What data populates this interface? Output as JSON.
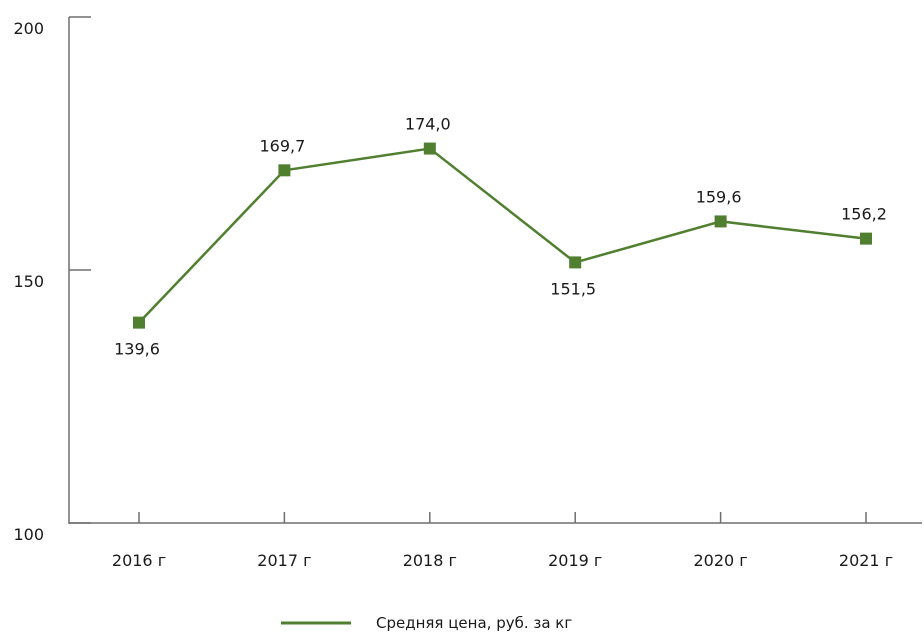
{
  "chart_data": {
    "type": "line",
    "categories": [
      "2016 г",
      "2017 г",
      "2018 г",
      "2019 г",
      "2020 г",
      "2021 г"
    ],
    "series": [
      {
        "name": "Средняя цена, руб. за кг",
        "values": [
          139.6,
          169.7,
          174.0,
          151.5,
          159.6,
          156.2
        ],
        "labels": [
          "139,6",
          "169,7",
          "174,0",
          "151,5",
          "159,6",
          "156,2"
        ],
        "color": "#4f7f2f"
      }
    ],
    "ylim": [
      100,
      200
    ],
    "yticks": [
      100,
      150,
      200
    ],
    "ytick_labels": [
      "100",
      "150",
      "200"
    ],
    "grid": false,
    "legend_position": "bottom"
  }
}
